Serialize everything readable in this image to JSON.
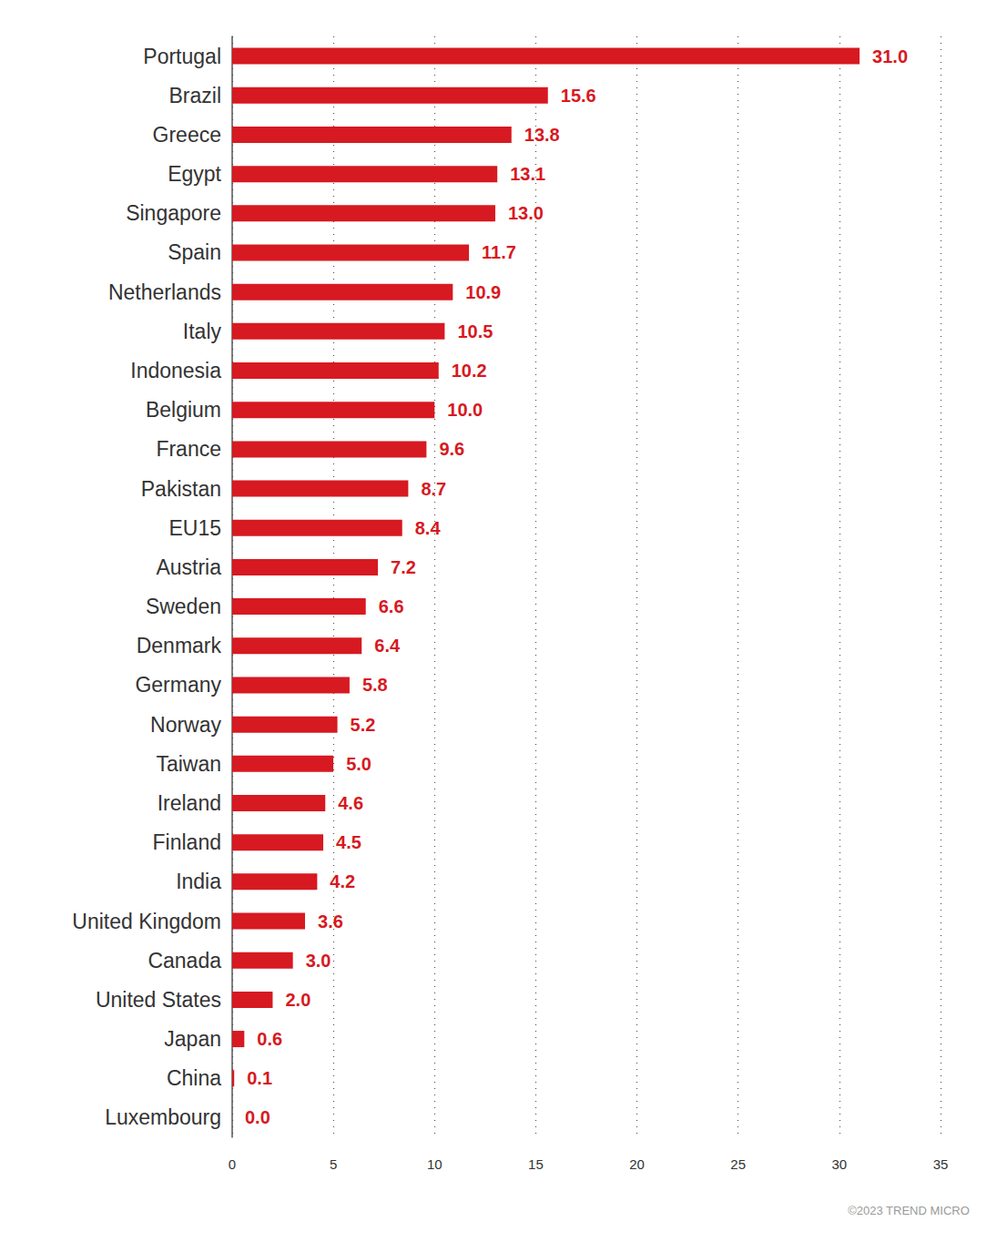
{
  "chart_data": {
    "type": "bar",
    "orientation": "horizontal",
    "categories": [
      "Portugal",
      "Brazil",
      "Greece",
      "Egypt",
      "Singapore",
      "Spain",
      "Netherlands",
      "Italy",
      "Indonesia",
      "Belgium",
      "France",
      "Pakistan",
      "EU15",
      "Austria",
      "Sweden",
      "Denmark",
      "Germany",
      "Norway",
      "Taiwan",
      "Ireland",
      "Finland",
      "India",
      "United Kingdom",
      "Canada",
      "United States",
      "Japan",
      "China",
      "Luxembourg"
    ],
    "values": [
      31.0,
      15.6,
      13.8,
      13.1,
      13.0,
      11.7,
      10.9,
      10.5,
      10.2,
      10.0,
      9.6,
      8.7,
      8.4,
      7.2,
      6.6,
      6.4,
      5.8,
      5.2,
      5.0,
      4.6,
      4.5,
      4.2,
      3.6,
      3.0,
      2.0,
      0.6,
      0.1,
      0.0
    ],
    "value_labels": [
      "31.0",
      "15.6",
      "13.8",
      "13.1",
      "13.0",
      "11.7",
      "10.9",
      "10.5",
      "10.2",
      "10.0",
      "9.6",
      "8.7",
      "8.4",
      "7.2",
      "6.6",
      "6.4",
      "5.8",
      "5.2",
      "5.0",
      "4.6",
      "4.5",
      "4.2",
      "3.6",
      "3.0",
      "2.0",
      "0.6",
      "0.1",
      "0.0"
    ],
    "color": "#d71921",
    "xlim": [
      0,
      35
    ],
    "xticks": [
      0,
      5,
      10,
      15,
      20,
      25,
      30,
      35
    ],
    "grid": true,
    "data_labels": true,
    "annotations": [
      "©2023 TREND MICRO"
    ]
  }
}
